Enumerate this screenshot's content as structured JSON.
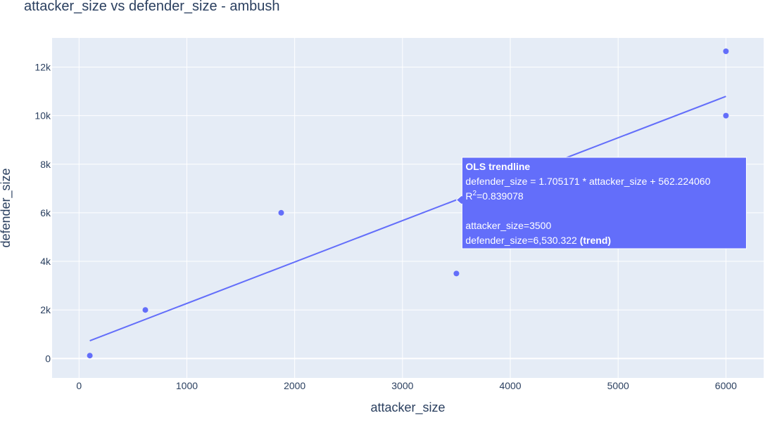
{
  "chart_data": {
    "type": "scatter",
    "title": "attacker_size vs defender_size - ambush",
    "xlabel": "attacker_size",
    "ylabel": "defender_size",
    "xlim": [
      -250,
      6350
    ],
    "ylim": [
      -800,
      13200
    ],
    "x_ticks": [
      0,
      1000,
      2000,
      3000,
      4000,
      5000,
      6000
    ],
    "x_tick_labels": [
      "0",
      "1000",
      "2000",
      "3000",
      "4000",
      "5000",
      "6000"
    ],
    "y_ticks": [
      0,
      2000,
      4000,
      6000,
      8000,
      10000,
      12000
    ],
    "y_tick_labels": [
      "0",
      "2k",
      "4k",
      "6k",
      "8k",
      "10k",
      "12k"
    ],
    "grid": true,
    "series": [
      {
        "points": [
          {
            "x": 100,
            "y": 120
          },
          {
            "x": 615,
            "y": 2000
          },
          {
            "x": 1875,
            "y": 6000
          },
          {
            "x": 3500,
            "y": 3500
          },
          {
            "x": 6000,
            "y": 10000
          },
          {
            "x": 6000,
            "y": 12650
          }
        ]
      }
    ],
    "trendline": {
      "slope": 1.705171,
      "intercept": 562.22406,
      "x_range": [
        100,
        6000
      ]
    },
    "hover": {
      "x": 3500,
      "y": 6530.322,
      "lines": [
        {
          "text": "OLS trendline",
          "bold": true
        },
        {
          "text": "defender_size = 1.705171 * attacker_size + 562.224060"
        },
        {
          "text": "R",
          "sup": "2",
          "after": "=0.839078"
        },
        {
          "text": ""
        },
        {
          "text": "attacker_size=3500"
        },
        {
          "text": "defender_size=6,530.322",
          "boldSuffix": " (trend)"
        }
      ]
    },
    "colors": {
      "marker": "#636efa",
      "plot_bg": "#e5ecf6",
      "grid": "#ffffff",
      "text": "#2a3f5f",
      "hover_bg": "#636efa"
    }
  }
}
